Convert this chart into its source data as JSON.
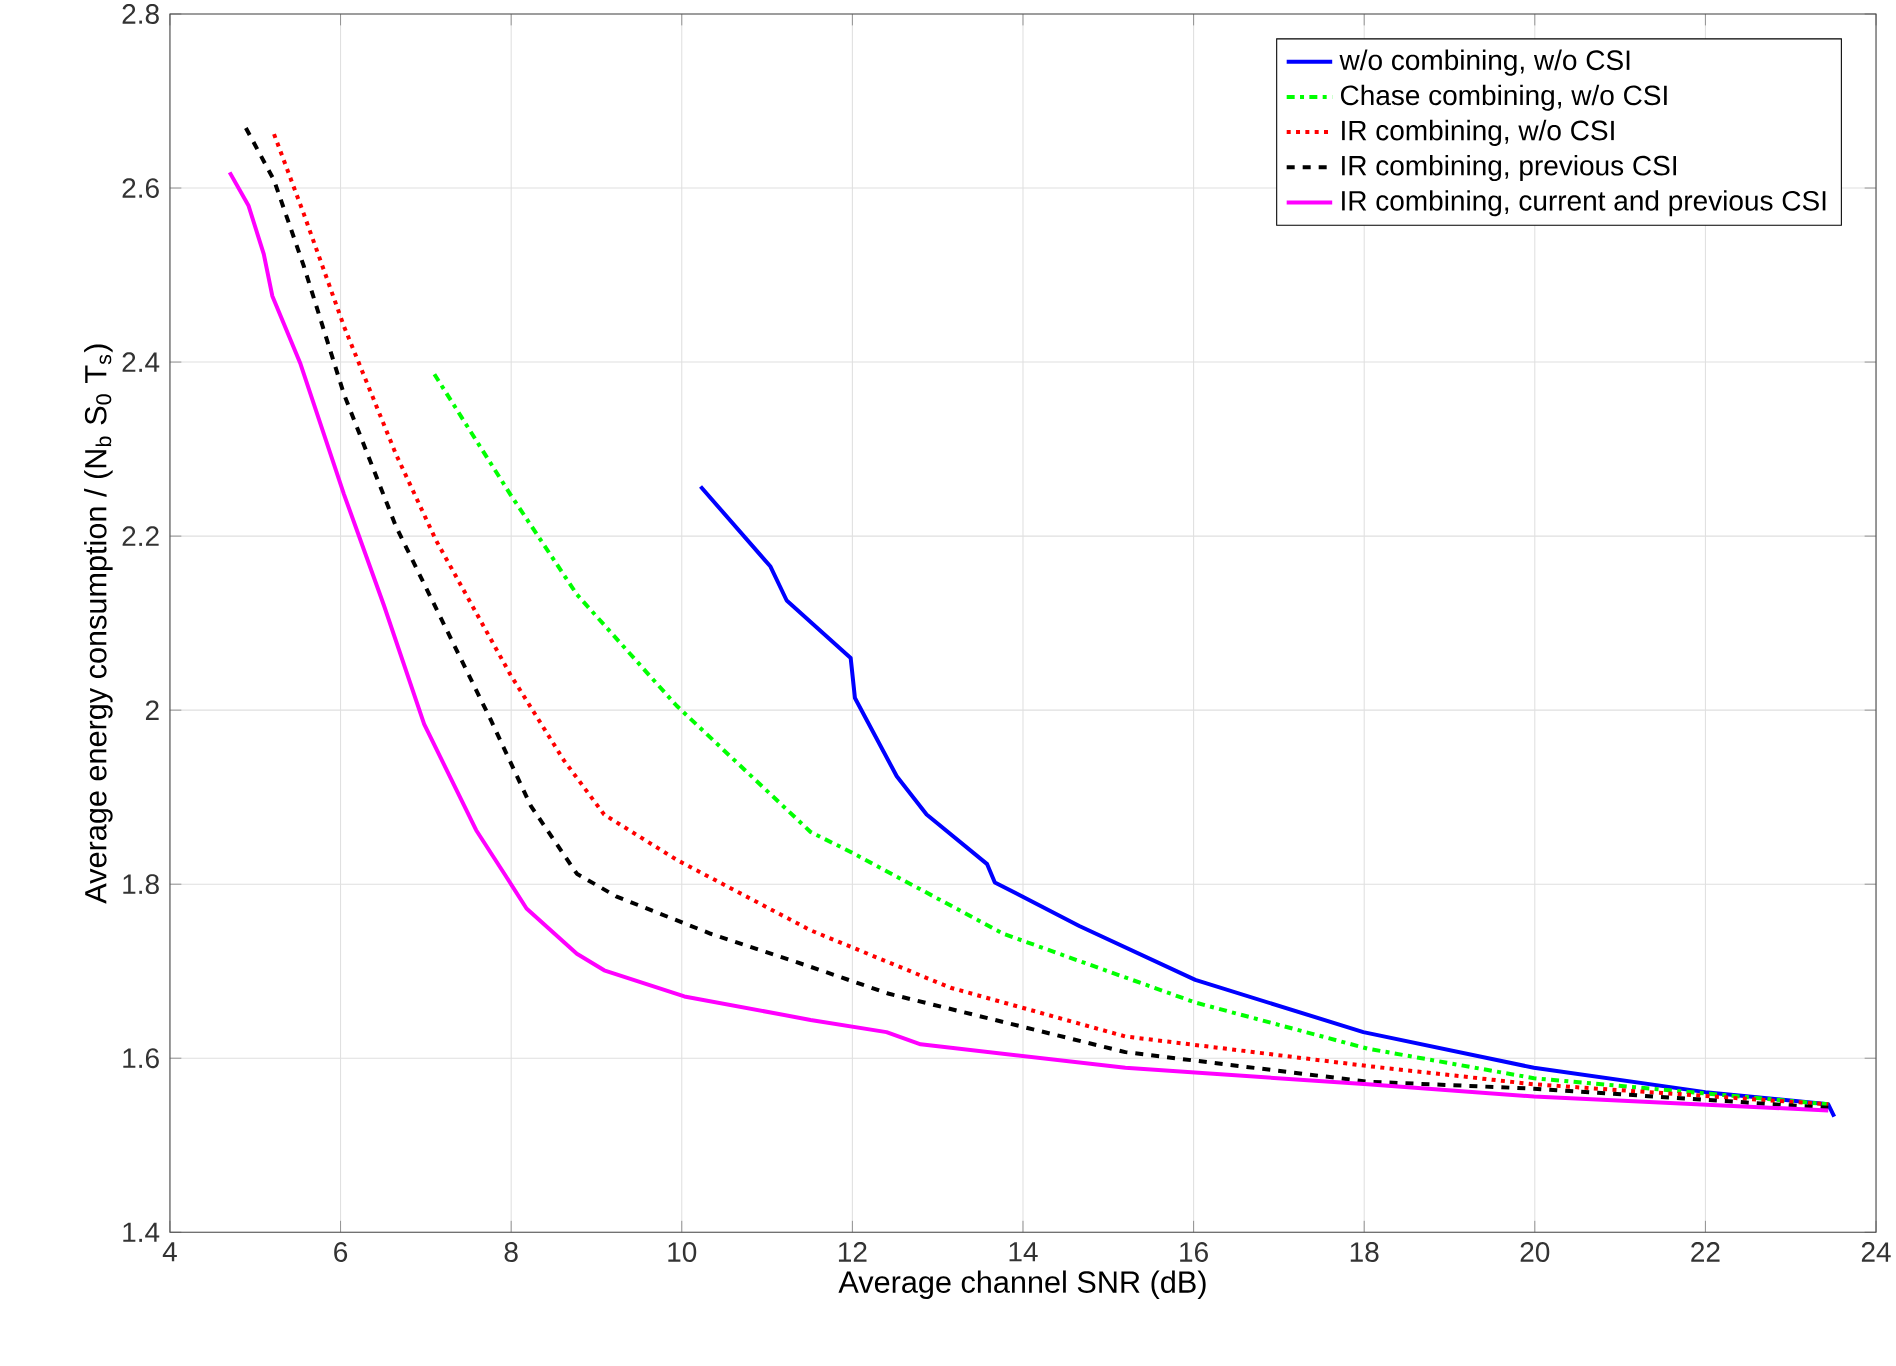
{
  "chart_data": {
    "type": "line",
    "xlabel": "Average channel SNR (dB)",
    "ylabel": "Average energy consumption / (N$_{b}$ S$_{0}$ T$_{s}$)",
    "xlim": [
      4,
      24
    ],
    "ylim": [
      1.4,
      2.8
    ],
    "xticks": [
      4,
      6,
      8,
      10,
      12,
      14,
      16,
      18,
      20,
      22,
      24
    ],
    "yticks": [
      1.4,
      1.6,
      1.8,
      2,
      2.2,
      2.4,
      2.6,
      2.8
    ],
    "grid": true,
    "legend": "top right",
    "marker": "none",
    "series": [
      {
        "name": "w/o combining, w/o CSI",
        "color": "#0000ff",
        "line_style": "solid",
        "x": [
          10.22,
          11.04,
          11.23,
          11.98,
          12.03,
          12.52,
          12.87,
          13.58,
          13.67,
          14.66,
          16.02,
          17.99,
          19.99,
          22.0,
          23.44,
          23.51
        ],
        "values": [
          2.257,
          2.165,
          2.126,
          2.06,
          2.014,
          1.924,
          1.88,
          1.823,
          1.802,
          1.752,
          1.69,
          1.63,
          1.589,
          1.561,
          1.547,
          1.533
        ]
      },
      {
        "name": "Chase combining, w/o CSI",
        "color": "#00ff00",
        "line_style": "dashdot",
        "x": [
          7.1,
          7.99,
          8.77,
          9.94,
          11.51,
          11.98,
          13.77,
          16.02,
          18.04,
          19.99,
          23.44
        ],
        "values": [
          2.386,
          2.248,
          2.133,
          2.005,
          1.86,
          1.837,
          1.743,
          1.664,
          1.611,
          1.577,
          1.547
        ]
      },
      {
        "name": "IR combining, w/o CSI",
        "color": "#ff0000",
        "line_style": "dotted",
        "x": [
          5.22,
          5.57,
          6.04,
          6.65,
          7.12,
          7.99,
          8.62,
          9.09,
          9.94,
          11.51,
          13.15,
          15.2,
          18.04,
          19.99,
          23.44
        ],
        "values": [
          2.662,
          2.57,
          2.441,
          2.294,
          2.195,
          2.041,
          1.942,
          1.88,
          1.828,
          1.747,
          1.681,
          1.625,
          1.591,
          1.57,
          1.547
        ]
      },
      {
        "name": "IR combining, previous CSI",
        "color": "#000000",
        "line_style": "dashed",
        "x": [
          4.89,
          5.22,
          5.57,
          6.04,
          6.65,
          7.22,
          7.76,
          8.23,
          8.77,
          9.23,
          10.34,
          11.51,
          12.43,
          15.2,
          18.04,
          19.99,
          23.44
        ],
        "values": [
          2.669,
          2.609,
          2.51,
          2.363,
          2.211,
          2.097,
          1.989,
          1.89,
          1.812,
          1.786,
          1.743,
          1.705,
          1.674,
          1.607,
          1.573,
          1.565,
          1.543
        ]
      },
      {
        "name": "IR combining, current and previous CSI",
        "color": "#ff00ff",
        "line_style": "solid",
        "x": [
          4.7,
          4.92,
          5.1,
          5.2,
          5.53,
          6.04,
          6.51,
          6.98,
          7.59,
          7.92,
          8.18,
          8.77,
          9.09,
          10.03,
          11.51,
          12.4,
          12.8,
          15.2,
          18.04,
          19.99,
          23.44
        ],
        "values": [
          2.618,
          2.58,
          2.524,
          2.476,
          2.398,
          2.248,
          2.12,
          1.984,
          1.862,
          1.812,
          1.772,
          1.72,
          1.701,
          1.671,
          1.644,
          1.63,
          1.616,
          1.589,
          1.57,
          1.556,
          1.54
        ]
      }
    ]
  }
}
